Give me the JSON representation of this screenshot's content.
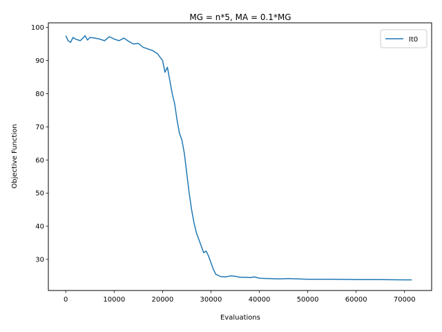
{
  "chart_data": {
    "type": "line",
    "title": "MG = n*5, MA = 0.1*MG",
    "xlabel": "Evaluations",
    "ylabel": "Objective Function",
    "xlim": [
      -3600,
      75600
    ],
    "ylim": [
      20.6,
      101.4
    ],
    "xticks": [
      0,
      10000,
      20000,
      30000,
      40000,
      50000,
      60000,
      70000
    ],
    "yticks": [
      30,
      40,
      50,
      60,
      70,
      80,
      90,
      100
    ],
    "grid": false,
    "legend_position": "top-right",
    "series": [
      {
        "name": "It0",
        "color": "#1f77b4",
        "x": [
          0,
          500,
          1000,
          1500,
          2000,
          3000,
          4000,
          4500,
          5000,
          6000,
          7000,
          8000,
          9000,
          10000,
          11000,
          12000,
          13000,
          14000,
          15000,
          16000,
          17000,
          18000,
          19000,
          20000,
          20500,
          21000,
          21500,
          22000,
          22500,
          23000,
          23500,
          24000,
          24500,
          25000,
          25500,
          26000,
          26500,
          27000,
          27500,
          28000,
          28500,
          29000,
          29500,
          30000,
          30500,
          31000,
          32000,
          33000,
          34000,
          35000,
          36000,
          37000,
          38000,
          39000,
          40000,
          42000,
          44000,
          46000,
          48000,
          50000,
          55000,
          60000,
          65000,
          70000,
          71500
        ],
        "y": [
          97.5,
          96.0,
          95.5,
          97.0,
          96.5,
          96.0,
          97.5,
          96.2,
          97.0,
          96.8,
          96.5,
          96.0,
          97.2,
          96.5,
          96.0,
          96.8,
          95.8,
          95.0,
          95.2,
          94.0,
          93.5,
          93.0,
          92.0,
          90.0,
          86.5,
          88.0,
          84.0,
          80.0,
          77.0,
          72.0,
          68.0,
          66.0,
          62.0,
          56.0,
          50.0,
          45.0,
          41.0,
          38.0,
          36.0,
          34.0,
          32.0,
          32.5,
          31.0,
          29.0,
          27.0,
          25.5,
          24.8,
          24.7,
          25.0,
          24.9,
          24.6,
          24.6,
          24.5,
          24.7,
          24.3,
          24.2,
          24.1,
          24.2,
          24.1,
          24.0,
          24.0,
          23.9,
          23.9,
          23.8,
          23.8
        ]
      }
    ]
  }
}
